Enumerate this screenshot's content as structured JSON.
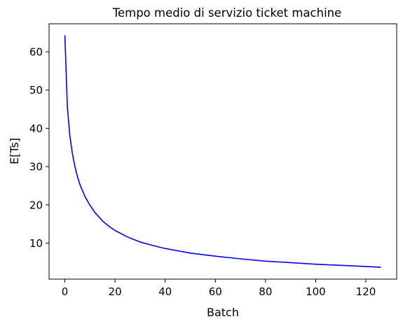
{
  "chart_data": {
    "type": "line",
    "title": "Tempo medio di servizio ticket machine",
    "xlabel": "Batch",
    "ylabel": "E[Ts]",
    "xlim": [
      -6.3,
      132.3
    ],
    "ylim": [
      0.6,
      67.3
    ],
    "xticks": [
      0,
      20,
      40,
      60,
      80,
      100,
      120
    ],
    "yticks": [
      10,
      20,
      30,
      40,
      50,
      60
    ],
    "grid": false,
    "series": [
      {
        "color": "#0000ff",
        "x": [
          0,
          1,
          2,
          3,
          4,
          5,
          6,
          8,
          10,
          12,
          15,
          18,
          20,
          25,
          30,
          35,
          40,
          45,
          50,
          60,
          70,
          80,
          90,
          100,
          110,
          120,
          126
        ],
        "y": [
          64.3,
          45.5,
          38.0,
          33.4,
          30.0,
          27.4,
          25.3,
          22.2,
          19.9,
          18.0,
          15.8,
          14.2,
          13.3,
          11.6,
          10.3,
          9.4,
          8.6,
          8.0,
          7.4,
          6.6,
          5.9,
          5.3,
          4.9,
          4.5,
          4.2,
          3.9,
          3.7
        ]
      }
    ]
  }
}
